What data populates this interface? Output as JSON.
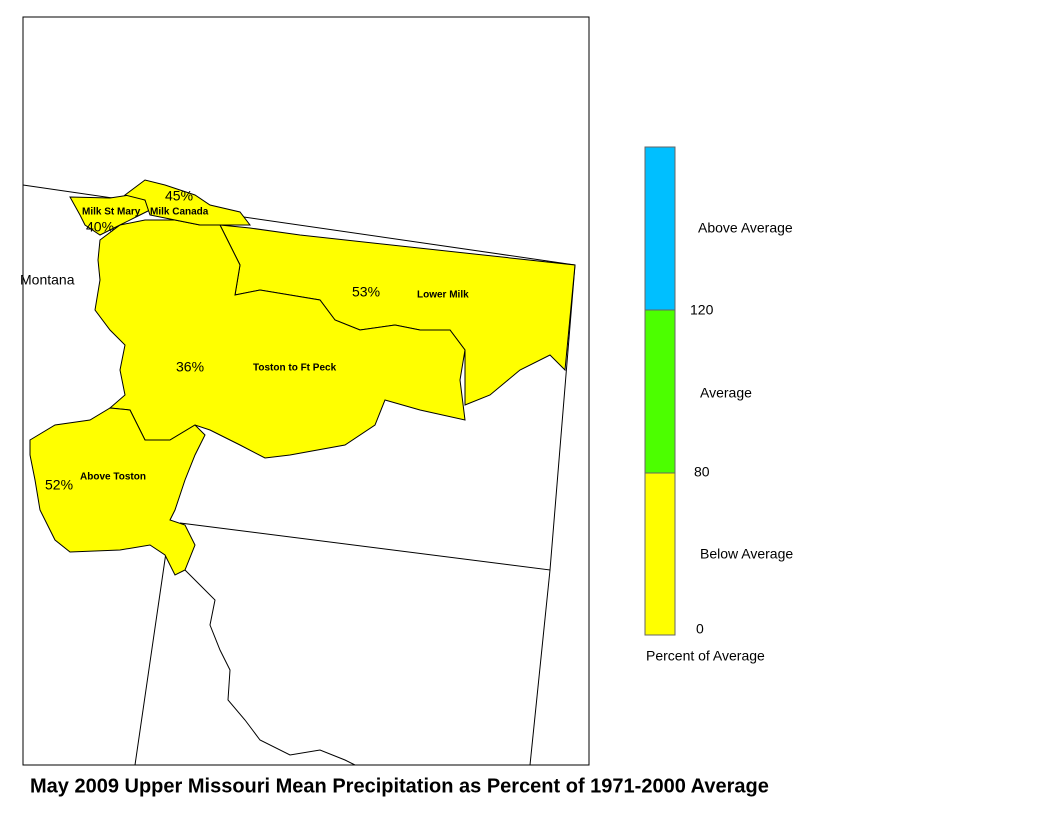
{
  "map": {
    "title": "May 2009 Upper Missouri Mean Precipitation as Percent of 1971-2000 Average",
    "state_label": "Montana",
    "regions": [
      {
        "name": "Milk St Mary",
        "percent": "40%"
      },
      {
        "name": "Milk Canada",
        "percent": "45%"
      },
      {
        "name": "Lower Milk",
        "percent": "53%"
      },
      {
        "name": "Toston to Ft Peck",
        "percent": "36%"
      },
      {
        "name": "Above Toston",
        "percent": "52%"
      }
    ],
    "legend": {
      "title": "Percent of Average",
      "classes": [
        "Above Average",
        "Average",
        "Below Average"
      ],
      "breaks": [
        "0",
        "80",
        "120"
      ]
    }
  }
}
